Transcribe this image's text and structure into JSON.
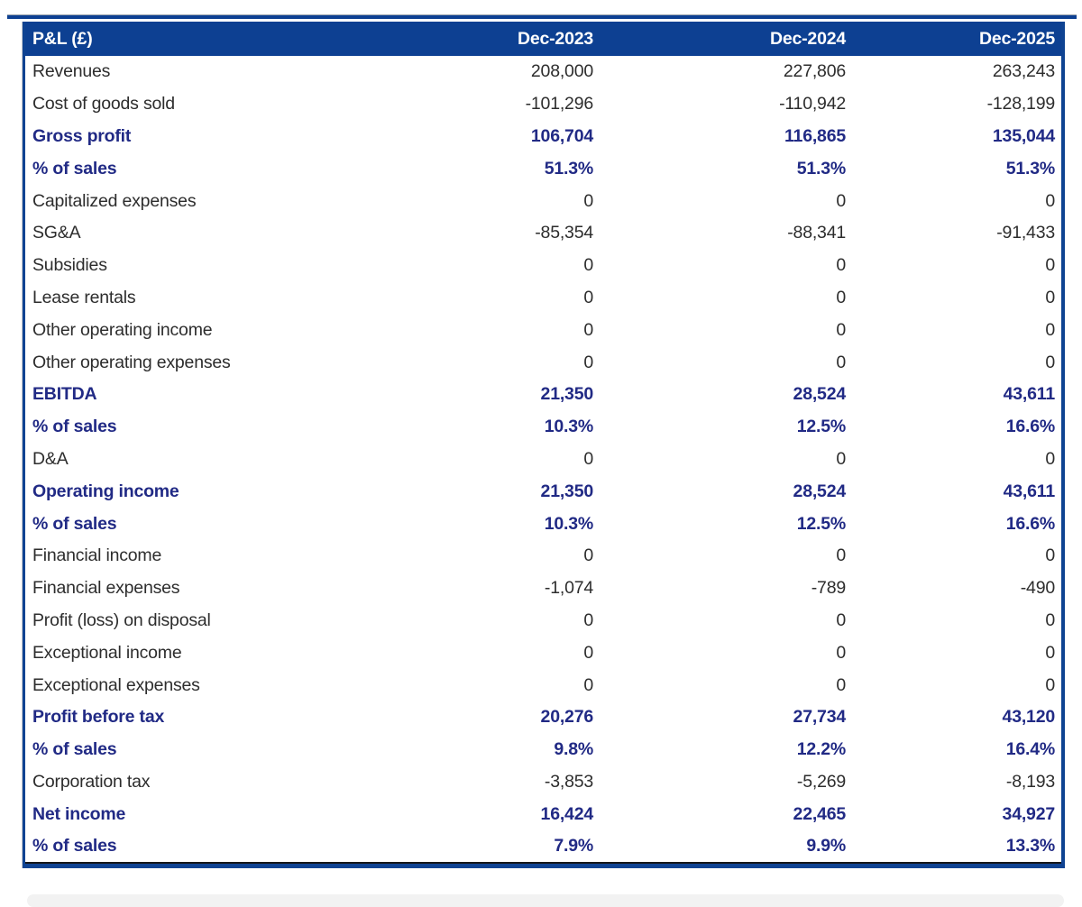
{
  "chart_data": {
    "type": "table",
    "title": "P&L (£)",
    "currency": "GBP",
    "columns": [
      "Dec-2023",
      "Dec-2024",
      "Dec-2025"
    ],
    "rows": [
      {
        "label": "Revenues",
        "values": [
          "208,000",
          "227,806",
          "263,243"
        ],
        "emphasis": false
      },
      {
        "label": "Cost of goods sold",
        "values": [
          "-101,296",
          "-110,942",
          "-128,199"
        ],
        "emphasis": false
      },
      {
        "label": "Gross profit",
        "values": [
          "106,704",
          "116,865",
          "135,044"
        ],
        "emphasis": true
      },
      {
        "label": "% of sales",
        "values": [
          "51.3%",
          "51.3%",
          "51.3%"
        ],
        "emphasis": true
      },
      {
        "label": "Capitalized expenses",
        "values": [
          "0",
          "0",
          "0"
        ],
        "emphasis": false
      },
      {
        "label": "SG&A",
        "values": [
          "-85,354",
          "-88,341",
          "-91,433"
        ],
        "emphasis": false
      },
      {
        "label": "Subsidies",
        "values": [
          "0",
          "0",
          "0"
        ],
        "emphasis": false
      },
      {
        "label": "Lease rentals",
        "values": [
          "0",
          "0",
          "0"
        ],
        "emphasis": false
      },
      {
        "label": "Other operating income",
        "values": [
          "0",
          "0",
          "0"
        ],
        "emphasis": false
      },
      {
        "label": "Other operating expenses",
        "values": [
          "0",
          "0",
          "0"
        ],
        "emphasis": false
      },
      {
        "label": "EBITDA",
        "values": [
          "21,350",
          "28,524",
          "43,611"
        ],
        "emphasis": true
      },
      {
        "label": "% of sales",
        "values": [
          "10.3%",
          "12.5%",
          "16.6%"
        ],
        "emphasis": true
      },
      {
        "label": "D&A",
        "values": [
          "0",
          "0",
          "0"
        ],
        "emphasis": false
      },
      {
        "label": "Operating income",
        "values": [
          "21,350",
          "28,524",
          "43,611"
        ],
        "emphasis": true
      },
      {
        "label": "% of sales",
        "values": [
          "10.3%",
          "12.5%",
          "16.6%"
        ],
        "emphasis": true
      },
      {
        "label": "Financial income",
        "values": [
          "0",
          "0",
          "0"
        ],
        "emphasis": false
      },
      {
        "label": "Financial expenses",
        "values": [
          "-1,074",
          "-789",
          "-490"
        ],
        "emphasis": false
      },
      {
        "label": "Profit (loss) on disposal",
        "values": [
          "0",
          "0",
          "0"
        ],
        "emphasis": false
      },
      {
        "label": "Exceptional income",
        "values": [
          "0",
          "0",
          "0"
        ],
        "emphasis": false
      },
      {
        "label": "Exceptional expenses",
        "values": [
          "0",
          "0",
          "0"
        ],
        "emphasis": false
      },
      {
        "label": "Profit before tax",
        "values": [
          "20,276",
          "27,734",
          "43,120"
        ],
        "emphasis": true
      },
      {
        "label": "% of sales",
        "values": [
          "9.8%",
          "12.2%",
          "16.4%"
        ],
        "emphasis": true
      },
      {
        "label": "Corporation tax",
        "values": [
          "-3,853",
          "-5,269",
          "-8,193"
        ],
        "emphasis": false
      },
      {
        "label": "Net income",
        "values": [
          "16,424",
          "22,465",
          "34,927"
        ],
        "emphasis": true
      },
      {
        "label": "% of sales",
        "values": [
          "7.9%",
          "9.9%",
          "13.3%"
        ],
        "emphasis": true
      }
    ],
    "layout": {
      "header_bg": "#0d4092",
      "header_text": "#ffffff",
      "emphasis_text": "#212a85",
      "body_text": "#2d2d2d",
      "border_navy": "#0f4392",
      "gridlines": "off",
      "numeric_alignment": "right"
    }
  }
}
